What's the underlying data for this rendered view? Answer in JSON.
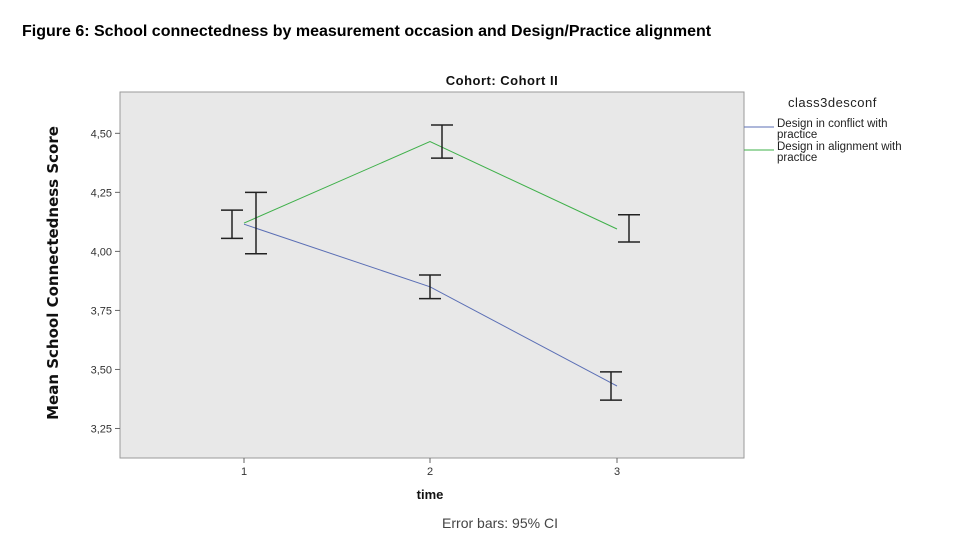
{
  "figure_title": "Figure 6: School connectedness by measurement occasion and Design/Practice alignment",
  "chart_data": {
    "type": "line",
    "title": "Cohort: Cohort II",
    "xlabel": "time",
    "ylabel": "Mean School Connectedness Score",
    "categories": [
      "1",
      "2",
      "3"
    ],
    "yticks": [
      "3,25",
      "3,50",
      "3,75",
      "4,00",
      "4,25",
      "4,50"
    ],
    "ylim": [
      3.125,
      4.675
    ],
    "legend_title": "class3desconf",
    "footnote": "Error bars: 95% CI",
    "series": [
      {
        "name": "Design in conflict with practice",
        "legend_lines": [
          "Design in conflict with",
          "practice"
        ],
        "color": "#5b6fb5",
        "values": [
          4.115,
          3.85,
          3.43
        ],
        "ci_low": [
          4.055,
          3.8,
          3.37
        ],
        "ci_high": [
          4.175,
          3.9,
          3.49
        ]
      },
      {
        "name": "Design in alignment with practice",
        "legend_lines": [
          "Design in alignment with",
          "practice"
        ],
        "color": "#3fb04a",
        "values": [
          4.12,
          4.465,
          4.095
        ],
        "ci_low": [
          3.99,
          4.395,
          4.04
        ],
        "ci_high": [
          4.25,
          4.535,
          4.155
        ]
      }
    ]
  }
}
